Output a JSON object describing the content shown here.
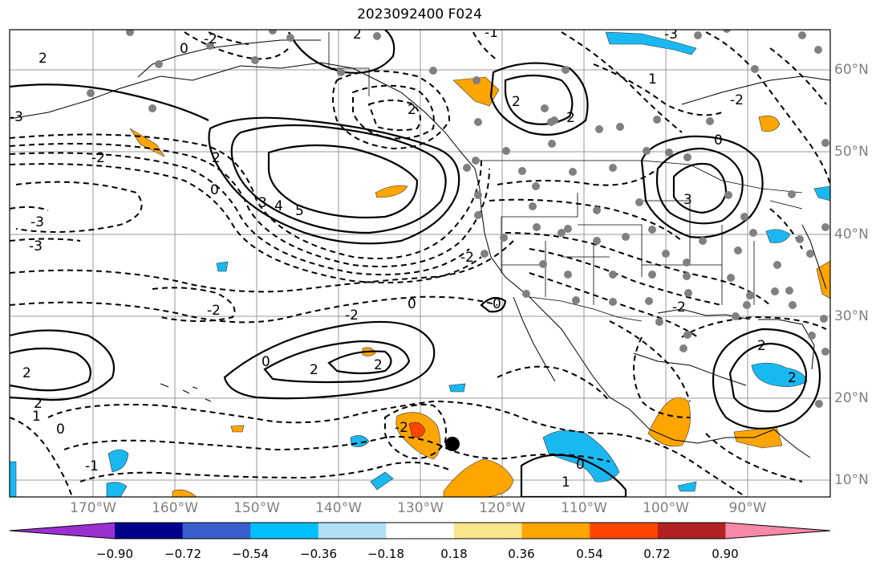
{
  "title": "2023092400 F024",
  "latitude_labels": [
    "60°N",
    "50°N",
    "40°N",
    "30°N",
    "20°N",
    "10°N"
  ],
  "longitude_labels": [
    "170°W",
    "160°W",
    "150°W",
    "140°W",
    "130°W",
    "120°W",
    "110°W",
    "100°W",
    "90°W"
  ],
  "contour_labels": [
    "2",
    "-2",
    "0",
    "1",
    "-3",
    "3",
    "4",
    "5",
    "-1"
  ],
  "colorbar": {
    "ticks": [
      "−0.90",
      "−0.72",
      "−0.54",
      "−0.36",
      "−0.18",
      "0.18",
      "0.36",
      "0.54",
      "0.72",
      "0.90"
    ],
    "colors": [
      "#9b30d0",
      "#00008b",
      "#3a5fcd",
      "#00bfff",
      "#b0e0f8",
      "#ffffff",
      "#f8e68a",
      "#ffa500",
      "#ff4500",
      "#b22222",
      "#f888a8"
    ]
  },
  "legend_colors": {
    "positive_shading": "#ffa500",
    "negative_shading": "#1ab8f0",
    "stations": "#808080",
    "marker": "#000000"
  }
}
